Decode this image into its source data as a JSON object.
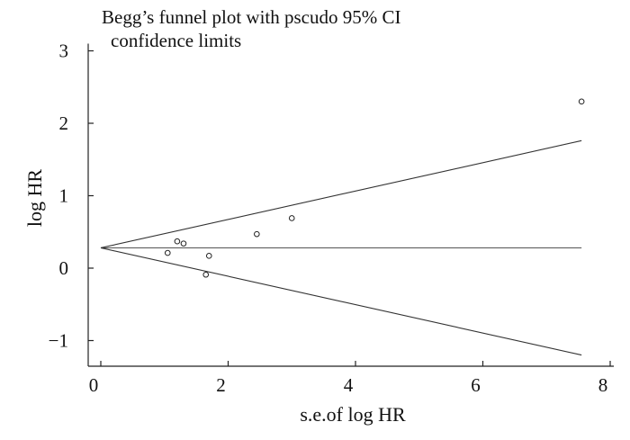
{
  "chart_data": {
    "type": "scatter",
    "title_line1": "Begg’s funnel plot with pscudo 95% CI",
    "title_line2": "confidence limits",
    "xlabel": "s.e.of log HR",
    "ylabel": "log HR",
    "xlim": [
      0,
      8
    ],
    "ylim": [
      -1.35,
      3.1
    ],
    "xticks": [
      0,
      2,
      4,
      6,
      8
    ],
    "yticks": [
      -1,
      0,
      1,
      2,
      3
    ],
    "xtick_labels": [
      "0",
      "2",
      "4",
      "6",
      "8"
    ],
    "ytick_labels": [
      "−1",
      "0",
      "1",
      "2",
      "3"
    ],
    "grid": false,
    "pooled_estimate": 0.28,
    "x_max_line": 7.55,
    "points": [
      {
        "x": 1.05,
        "y": 0.21
      },
      {
        "x": 1.2,
        "y": 0.37
      },
      {
        "x": 1.3,
        "y": 0.34
      },
      {
        "x": 1.65,
        "y": -0.09
      },
      {
        "x": 1.7,
        "y": 0.17
      },
      {
        "x": 2.45,
        "y": 0.47
      },
      {
        "x": 3.0,
        "y": 0.69
      },
      {
        "x": 7.55,
        "y": 2.3
      }
    ]
  }
}
